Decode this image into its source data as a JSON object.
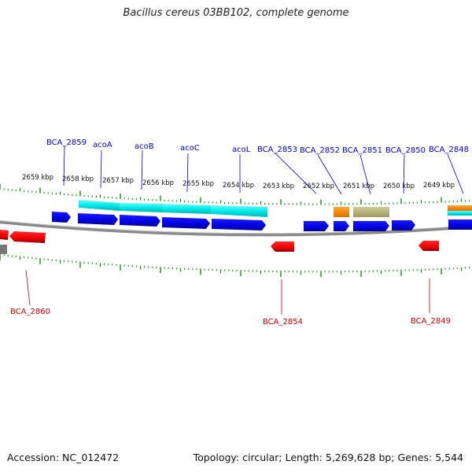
{
  "title": "Bacillus cereus 03BB102, complete genome",
  "footer": {
    "accession": "Accession: NC_012472",
    "info": "Topology: circular; Length: 5,269,628 bp; Genes: 5,544"
  },
  "colors": {
    "forward_gene": "#0000ee",
    "reverse_gene": "#ee0000",
    "cds_cyan": "#00e8e8",
    "cds_orange": "#f08800",
    "cds_khaki": "#b8b47a",
    "tick_green": "#008800",
    "axis_gray": "#808080",
    "forward_label": "#0000cc",
    "reverse_label": "#cc0000"
  },
  "kbp_labels": [
    "2659 kbp",
    "2658 kbp",
    "2657 kbp",
    "2656 kbp",
    "2655 kbp",
    "2654 kbp",
    "2653 kbp",
    "2652 kbp",
    "2651 kbp",
    "2650 kbp",
    "2649 kbp"
  ],
  "forward_gene_labels": [
    "BCA_2859",
    "acoA",
    "acoB",
    "acoC",
    "acoL",
    "BCA_2853",
    "BCA_2852",
    "BCA_2851",
    "BCA_2850",
    "BCA_2848"
  ],
  "reverse_gene_labels": [
    "BCA_2860",
    "BCA_2854",
    "BCA_2849"
  ]
}
